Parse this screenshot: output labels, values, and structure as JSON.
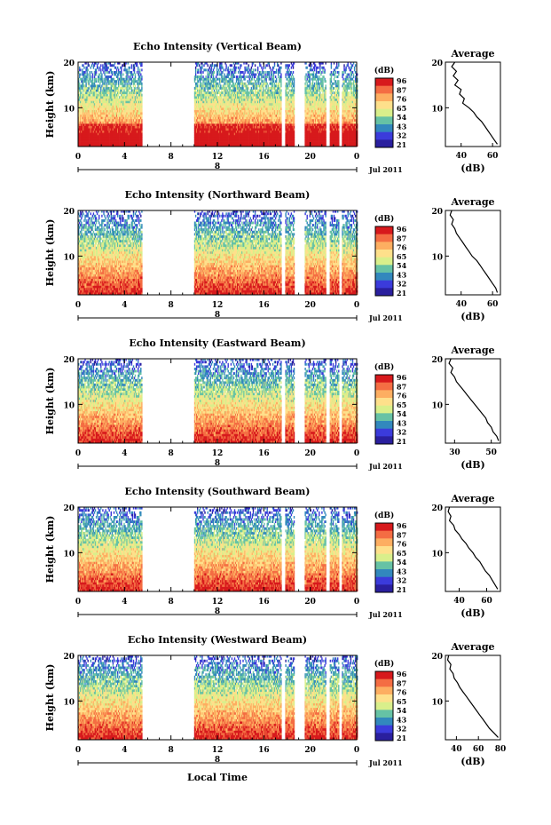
{
  "figure": {
    "xlabel": "Local Time"
  },
  "colorbar": {
    "unit": "(dB)",
    "tick_labels": [
      "96",
      "87",
      "76",
      "65",
      "54",
      "43",
      "32",
      "21"
    ],
    "colors": [
      "#d7191c",
      "#f46d43",
      "#fdae61",
      "#fee08b",
      "#d9ef8b",
      "#66c2a5",
      "#3288bd",
      "#3b3bdb",
      "#2a1f9e"
    ]
  },
  "chart_data": [
    {
      "type": "heatmap",
      "title": "Echo Intensity (Vertical Beam)",
      "ylabel": "Height (km)",
      "x_ticks": [
        "0",
        "4",
        "8",
        "12",
        "16",
        "20",
        "0"
      ],
      "date_label": "8",
      "month_label": "Jul 2011",
      "y_ticks": [
        "20",
        "10"
      ],
      "xlim": [
        0,
        24
      ],
      "ylim": [
        1.5,
        20
      ],
      "gaps": [
        [
          5.5,
          10
        ],
        [
          17.5,
          17.8
        ],
        [
          18.6,
          19.5
        ],
        [
          21.3,
          21.6
        ],
        [
          22.4,
          22.7
        ]
      ],
      "profile": {
        "title": "Average",
        "xlabel": "(dB)",
        "xticks": [
          "40",
          "60"
        ],
        "xlim": [
          30,
          65
        ],
        "yticks": [
          "20",
          "10"
        ],
        "points": [
          [
            36,
            20
          ],
          [
            34,
            19
          ],
          [
            37,
            18
          ],
          [
            35,
            17
          ],
          [
            38,
            16
          ],
          [
            36,
            15
          ],
          [
            40,
            14
          ],
          [
            39,
            13
          ],
          [
            42,
            12
          ],
          [
            41,
            11
          ],
          [
            45,
            10
          ],
          [
            48,
            9
          ],
          [
            50,
            8
          ],
          [
            53,
            7
          ],
          [
            55,
            6
          ],
          [
            57,
            5
          ],
          [
            59,
            4
          ],
          [
            61,
            3
          ],
          [
            63,
            2
          ]
        ]
      }
    },
    {
      "type": "heatmap",
      "title": "Echo Intensity (Northward Beam)",
      "ylabel": "Height (km)",
      "x_ticks": [
        "0",
        "4",
        "8",
        "12",
        "16",
        "20",
        "0"
      ],
      "date_label": "8",
      "month_label": "Jul 2011",
      "y_ticks": [
        "20",
        "10"
      ],
      "xlim": [
        0,
        24
      ],
      "ylim": [
        1.5,
        20
      ],
      "gaps": [
        [
          5.5,
          10
        ],
        [
          17.5,
          17.8
        ],
        [
          18.6,
          19.5
        ],
        [
          21.3,
          21.6
        ],
        [
          22.4,
          22.7
        ]
      ],
      "profile": {
        "title": "Average",
        "xlabel": "(dB)",
        "xticks": [
          "40",
          "60"
        ],
        "xlim": [
          30,
          65
        ],
        "yticks": [
          "20",
          "10"
        ],
        "points": [
          [
            34,
            20
          ],
          [
            33,
            19
          ],
          [
            35,
            18
          ],
          [
            34,
            17
          ],
          [
            36,
            16
          ],
          [
            37,
            15
          ],
          [
            39,
            14
          ],
          [
            41,
            13
          ],
          [
            43,
            12
          ],
          [
            45,
            11
          ],
          [
            47,
            10
          ],
          [
            50,
            9
          ],
          [
            52,
            8
          ],
          [
            54,
            7
          ],
          [
            56,
            6
          ],
          [
            58,
            5
          ],
          [
            60,
            4
          ],
          [
            62,
            3
          ],
          [
            63,
            2
          ]
        ]
      }
    },
    {
      "type": "heatmap",
      "title": "Echo Intensity (Eastward Beam)",
      "ylabel": "Height (km)",
      "x_ticks": [
        "0",
        "4",
        "8",
        "12",
        "16",
        "20",
        "0"
      ],
      "date_label": "8",
      "month_label": "Jul 2011",
      "y_ticks": [
        "20",
        "10"
      ],
      "xlim": [
        0,
        24
      ],
      "ylim": [
        1.5,
        20
      ],
      "gaps": [
        [
          5.5,
          10
        ],
        [
          17.5,
          17.8
        ],
        [
          18.6,
          19.5
        ],
        [
          21.3,
          21.6
        ],
        [
          22.4,
          22.7
        ]
      ],
      "profile": {
        "title": "Average",
        "xlabel": "(dB)",
        "xticks": [
          "30",
          "50"
        ],
        "xlim": [
          25,
          55
        ],
        "yticks": [
          "20",
          "10"
        ],
        "points": [
          [
            28,
            20
          ],
          [
            27,
            19
          ],
          [
            29,
            18
          ],
          [
            28,
            17
          ],
          [
            30,
            16
          ],
          [
            31,
            15
          ],
          [
            33,
            14
          ],
          [
            35,
            13
          ],
          [
            37,
            12
          ],
          [
            39,
            11
          ],
          [
            41,
            10
          ],
          [
            43,
            9
          ],
          [
            45,
            8
          ],
          [
            47,
            7
          ],
          [
            48,
            6
          ],
          [
            50,
            5
          ],
          [
            51,
            4
          ],
          [
            53,
            3
          ],
          [
            54,
            2
          ]
        ]
      }
    },
    {
      "type": "heatmap",
      "title": "Echo Intensity (Southward Beam)",
      "ylabel": "Height (km)",
      "x_ticks": [
        "0",
        "4",
        "8",
        "12",
        "16",
        "20",
        "0"
      ],
      "date_label": "8",
      "month_label": "Jul 2011",
      "y_ticks": [
        "20",
        "10"
      ],
      "xlim": [
        0,
        24
      ],
      "ylim": [
        1.5,
        20
      ],
      "gaps": [
        [
          5.5,
          10
        ],
        [
          17.5,
          17.8
        ],
        [
          18.6,
          19.5
        ],
        [
          21.3,
          21.6
        ],
        [
          22.4,
          22.7
        ]
      ],
      "profile": {
        "title": "Average",
        "xlabel": "(dB)",
        "xticks": [
          "40",
          "60"
        ],
        "xlim": [
          30,
          70
        ],
        "yticks": [
          "20",
          "10"
        ],
        "points": [
          [
            33,
            20
          ],
          [
            32,
            19
          ],
          [
            34,
            18
          ],
          [
            33,
            17
          ],
          [
            36,
            16
          ],
          [
            37,
            15
          ],
          [
            40,
            14
          ],
          [
            42,
            13
          ],
          [
            45,
            12
          ],
          [
            47,
            11
          ],
          [
            50,
            10
          ],
          [
            52,
            9
          ],
          [
            55,
            8
          ],
          [
            57,
            7
          ],
          [
            59,
            6
          ],
          [
            62,
            5
          ],
          [
            64,
            4
          ],
          [
            66,
            3
          ],
          [
            68,
            2
          ]
        ]
      }
    },
    {
      "type": "heatmap",
      "title": "Echo Intensity (Westward Beam)",
      "ylabel": "Height (km)",
      "x_ticks": [
        "0",
        "4",
        "8",
        "12",
        "16",
        "20",
        "0"
      ],
      "date_label": "8",
      "month_label": "Jul 2011",
      "y_ticks": [
        "20",
        "10"
      ],
      "xlim": [
        0,
        24
      ],
      "ylim": [
        1.5,
        20
      ],
      "gaps": [
        [
          5.5,
          10
        ],
        [
          17.5,
          17.8
        ],
        [
          18.6,
          19.5
        ],
        [
          21.3,
          21.6
        ],
        [
          22.4,
          22.7
        ]
      ],
      "profile": {
        "title": "Average",
        "xlabel": "(dB)",
        "xticks": [
          "40",
          "60",
          "80"
        ],
        "xlim": [
          30,
          80
        ],
        "yticks": [
          "20",
          "10"
        ],
        "points": [
          [
            33,
            20
          ],
          [
            32,
            19
          ],
          [
            35,
            18
          ],
          [
            34,
            17
          ],
          [
            37,
            16
          ],
          [
            38,
            15
          ],
          [
            41,
            14
          ],
          [
            43,
            13
          ],
          [
            46,
            12
          ],
          [
            49,
            11
          ],
          [
            52,
            10
          ],
          [
            55,
            9
          ],
          [
            58,
            8
          ],
          [
            61,
            7
          ],
          [
            64,
            6
          ],
          [
            67,
            5
          ],
          [
            70,
            4
          ],
          [
            74,
            3
          ],
          [
            78,
            2
          ]
        ]
      }
    }
  ]
}
